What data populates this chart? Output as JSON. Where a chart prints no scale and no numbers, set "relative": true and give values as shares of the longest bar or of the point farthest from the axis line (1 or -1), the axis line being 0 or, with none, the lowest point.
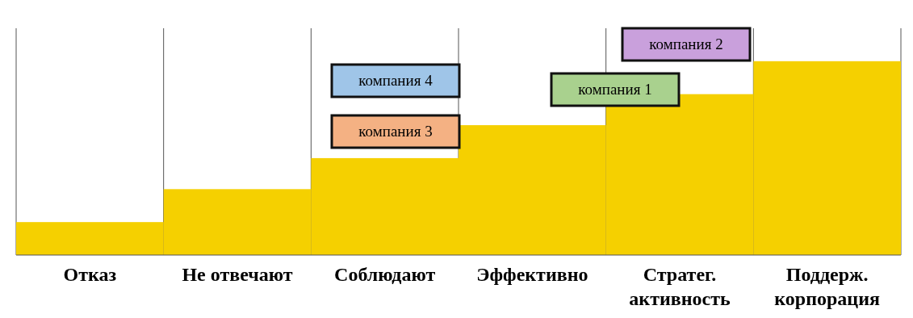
{
  "chart_data": {
    "type": "bar",
    "relative": true,
    "color": "#f5d000",
    "grid": "x",
    "categories": [
      "Отказ",
      "Не отвечают",
      "Соблюдают",
      "Эффективно",
      "Стратег. активность",
      "Поддерж. корпорация"
    ],
    "values": [
      0.17,
      0.34,
      0.5,
      0.67,
      0.83,
      1
    ],
    "annotations": [
      "компания 4",
      "компания 3",
      "компания 1",
      "компания 2"
    ]
  }
}
